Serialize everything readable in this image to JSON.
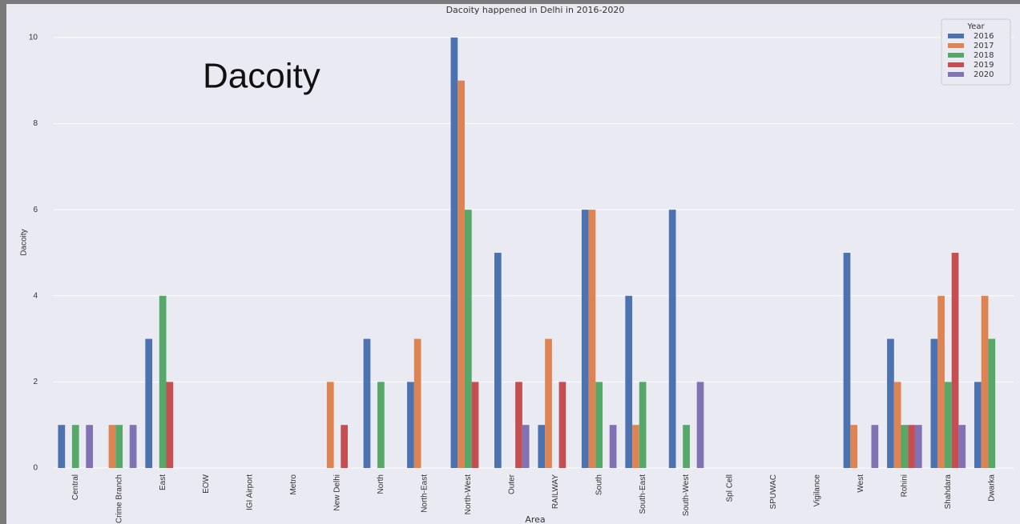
{
  "chart_data": {
    "type": "bar",
    "title": "Dacoity happened in Delhi in 2016-2020",
    "annotation": "Dacoity",
    "x_label": "Area",
    "y_label": "Dacoity",
    "legend_title": "Year",
    "legend_position": "upper right",
    "grid": true,
    "categories": [
      "Central",
      "Crime Branch",
      "East",
      "EOW",
      "IGI Airport",
      "Metro",
      "New Delhi",
      "North",
      "North-East",
      "North-West",
      "Outer",
      "RAILWAY",
      "South",
      "South-East",
      "South-West",
      "Spl Cell",
      "SPUWAC",
      "Vigilance",
      "West",
      "Rohini",
      "Shahdara",
      "Dwarka"
    ],
    "series": [
      {
        "name": "2016",
        "color": "#4c72b0",
        "values": [
          1,
          0,
          3,
          0,
          0,
          0,
          0,
          3,
          2,
          10,
          5,
          1,
          6,
          4,
          6,
          0,
          0,
          0,
          5,
          3,
          3,
          2
        ]
      },
      {
        "name": "2017",
        "color": "#dd8452",
        "values": [
          0,
          1,
          0,
          0,
          0,
          0,
          2,
          0,
          3,
          9,
          0,
          3,
          6,
          1,
          0,
          0,
          0,
          0,
          1,
          2,
          4,
          4
        ]
      },
      {
        "name": "2018",
        "color": "#55a868",
        "values": [
          1,
          1,
          4,
          0,
          0,
          0,
          0,
          2,
          0,
          6,
          0,
          0,
          2,
          2,
          1,
          0,
          0,
          0,
          0,
          1,
          2,
          3
        ]
      },
      {
        "name": "2019",
        "color": "#c44e52",
        "values": [
          0,
          0,
          2,
          0,
          0,
          0,
          1,
          0,
          0,
          2,
          2,
          2,
          0,
          0,
          0,
          0,
          0,
          0,
          0,
          1,
          5,
          0
        ]
      },
      {
        "name": "2020",
        "color": "#8172b3",
        "values": [
          1,
          1,
          0,
          0,
          0,
          0,
          0,
          0,
          0,
          0,
          1,
          0,
          1,
          0,
          2,
          0,
          0,
          0,
          1,
          1,
          1,
          0
        ]
      }
    ],
    "ylim": [
      0,
      10.5
    ],
    "yticks": [
      0,
      2,
      4,
      6,
      8,
      10
    ]
  }
}
